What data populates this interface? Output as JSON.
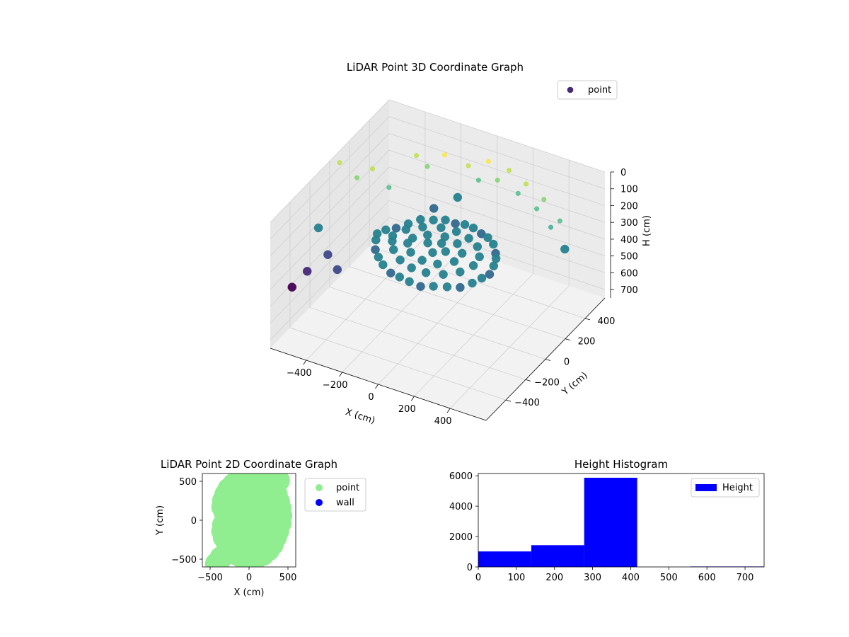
{
  "chart_data": [
    {
      "type": "scatter",
      "projection": "3d",
      "title": "LiDAR Point 3D Coordinate Graph",
      "xlabel": "X (cm)",
      "ylabel": "Y (cm)",
      "zlabel": "H (cm)",
      "xlim": [
        -600,
        600
      ],
      "ylim": [
        -600,
        600
      ],
      "zlim": [
        0,
        750
      ],
      "z_inverted": true,
      "xticks": [
        -400,
        -200,
        0,
        200,
        400
      ],
      "yticks": [
        -400,
        -200,
        0,
        200,
        400
      ],
      "zticks": [
        0,
        100,
        200,
        300,
        400,
        500,
        600,
        700
      ],
      "colormap": "viridis (by height)",
      "grid": true,
      "legend": {
        "entries": [
          "point"
        ],
        "placement": "top-right"
      },
      "series": [
        {
          "name": "point",
          "color": "#482878",
          "sample_points": [
            [
              -330,
              -10,
              330
            ],
            [
              -310,
              40,
              330
            ],
            [
              -280,
              90,
              340
            ],
            [
              -240,
              140,
              330
            ],
            [
              -200,
              190,
              320
            ],
            [
              -150,
              230,
              330
            ],
            [
              -100,
              260,
              330
            ],
            [
              -50,
              270,
              340
            ],
            [
              0,
              275,
              330
            ],
            [
              50,
              270,
              330
            ],
            [
              100,
              260,
              340
            ],
            [
              150,
              235,
              330
            ],
            [
              200,
              200,
              330
            ],
            [
              240,
              150,
              340
            ],
            [
              270,
              100,
              330
            ],
            [
              290,
              40,
              330
            ],
            [
              300,
              -20,
              340
            ],
            [
              290,
              -80,
              330
            ],
            [
              270,
              -140,
              330
            ],
            [
              230,
              -190,
              340
            ],
            [
              180,
              -230,
              330
            ],
            [
              120,
              -260,
              330
            ],
            [
              60,
              -280,
              340
            ],
            [
              0,
              -285,
              330
            ],
            [
              -60,
              -275,
              330
            ],
            [
              -120,
              -255,
              340
            ],
            [
              -180,
              -225,
              330
            ],
            [
              -230,
              -180,
              330
            ],
            [
              -280,
              -120,
              340
            ],
            [
              -310,
              -60,
              330
            ],
            [
              -250,
              0,
              320
            ],
            [
              -220,
              80,
              320
            ],
            [
              -160,
              140,
              320
            ],
            [
              -80,
              180,
              320
            ],
            [
              0,
              190,
              320
            ],
            [
              80,
              170,
              320
            ],
            [
              150,
              130,
              320
            ],
            [
              200,
              60,
              320
            ],
            [
              210,
              -20,
              320
            ],
            [
              180,
              -100,
              320
            ],
            [
              120,
              -160,
              320
            ],
            [
              40,
              -190,
              320
            ],
            [
              -40,
              -190,
              320
            ],
            [
              -120,
              -160,
              320
            ],
            [
              -190,
              -100,
              320
            ],
            [
              -230,
              -40,
              320
            ],
            [
              -150,
              20,
              310
            ],
            [
              -100,
              80,
              310
            ],
            [
              -20,
              110,
              310
            ],
            [
              60,
              90,
              310
            ],
            [
              120,
              30,
              310
            ],
            [
              120,
              -50,
              310
            ],
            [
              60,
              -110,
              310
            ],
            [
              -20,
              -120,
              310
            ],
            [
              -100,
              -90,
              310
            ],
            [
              -150,
              -30,
              310
            ],
            [
              -60,
              10,
              300
            ],
            [
              0,
              40,
              300
            ],
            [
              50,
              -10,
              300
            ],
            [
              0,
              -50,
              300
            ],
            [
              -230,
              380,
              380
            ],
            [
              -120,
              420,
              300
            ],
            [
              -20,
              450,
              180
            ],
            [
              80,
              460,
              150
            ],
            [
              200,
              450,
              180
            ],
            [
              320,
              420,
              210
            ],
            [
              420,
              380,
              260
            ],
            [
              520,
              340,
              330
            ],
            [
              -300,
              330,
              60
            ],
            [
              -250,
              350,
              120
            ],
            [
              -170,
              380,
              40
            ],
            [
              -60,
              420,
              90
            ],
            [
              40,
              440,
              40
            ],
            [
              150,
              450,
              60
            ],
            [
              250,
              440,
              100
            ],
            [
              360,
              420,
              140
            ],
            [
              460,
              400,
              220
            ],
            [
              -600,
              100,
              70
            ],
            [
              -520,
              130,
              150
            ],
            [
              -450,
              160,
              90
            ],
            [
              -380,
              200,
              200
            ],
            [
              -580,
              -150,
              300
            ],
            [
              -500,
              -200,
              400
            ],
            [
              -420,
              -250,
              430
            ],
            [
              -600,
              -380,
              520
            ],
            [
              -560,
              -300,
              460
            ]
          ]
        }
      ]
    },
    {
      "type": "scatter",
      "title": "LiDAR Point 2D Coordinate Graph",
      "xlabel": "X (cm)",
      "ylabel": "Y (cm)",
      "xlim": [
        -600,
        600
      ],
      "ylim": [
        -600,
        600
      ],
      "xticks": [
        -500,
        0,
        500
      ],
      "yticks": [
        -500,
        0,
        500
      ],
      "grid": false,
      "legend": {
        "entries": [
          "point",
          "wall"
        ],
        "placement": "outside-right"
      },
      "series": [
        {
          "name": "point",
          "color": "#90ee90",
          "sample_points": [
            [
              -100,
              540
            ],
            [
              -50,
              560
            ],
            [
              0,
              570
            ],
            [
              50,
              555
            ],
            [
              100,
              535
            ],
            [
              150,
              500
            ],
            [
              -150,
              500
            ],
            [
              -200,
              460
            ],
            [
              -260,
              400
            ],
            [
              -300,
              330
            ],
            [
              -330,
              250
            ],
            [
              -340,
              170
            ],
            [
              -310,
              100
            ],
            [
              -250,
              60
            ],
            [
              -290,
              10
            ],
            [
              -330,
              -60
            ],
            [
              -340,
              -140
            ],
            [
              -320,
              -220
            ],
            [
              -280,
              -300
            ],
            [
              -240,
              -370
            ],
            [
              -180,
              -430
            ],
            [
              -100,
              -470
            ],
            [
              0,
              -490
            ],
            [
              100,
              -480
            ],
            [
              180,
              -440
            ],
            [
              250,
              -380
            ],
            [
              300,
              -310
            ],
            [
              340,
              -220
            ],
            [
              370,
              -140
            ],
            [
              400,
              -40
            ],
            [
              410,
              60
            ],
            [
              400,
              150
            ],
            [
              380,
              240
            ],
            [
              350,
              330
            ],
            [
              300,
              400
            ],
            [
              250,
              460
            ],
            [
              200,
              500
            ],
            [
              320,
              510
            ],
            [
              380,
              510
            ],
            [
              -360,
              -480
            ],
            [
              -390,
              -540
            ],
            [
              -420,
              -560
            ],
            [
              0,
              0
            ],
            [
              -100,
              100
            ],
            [
              100,
              100
            ],
            [
              -100,
              -100
            ],
            [
              100,
              -100
            ],
            [
              0,
              300
            ],
            [
              0,
              -300
            ],
            [
              200,
              0
            ],
            [
              -200,
              0
            ],
            [
              -150,
              250
            ],
            [
              150,
              250
            ],
            [
              -150,
              -250
            ],
            [
              150,
              -250
            ],
            [
              250,
              200
            ],
            [
              -250,
              -150
            ],
            [
              250,
              -200
            ],
            [
              -50,
              400
            ],
            [
              50,
              -400
            ]
          ]
        },
        {
          "name": "wall",
          "color": "#0000ff",
          "sample_points": []
        }
      ]
    },
    {
      "type": "histogram",
      "title": "Height Histogram",
      "xlim": [
        0,
        750
      ],
      "ylim": [
        0,
        6150
      ],
      "xticks": [
        0,
        100,
        200,
        300,
        400,
        500,
        600,
        700
      ],
      "yticks": [
        0,
        2000,
        4000,
        6000
      ],
      "grid": false,
      "legend": {
        "entries": [
          "Height"
        ],
        "placement": "top-right"
      },
      "bins": [
        0,
        139,
        278,
        417,
        556,
        695,
        750
      ],
      "series": [
        {
          "name": "Height",
          "color": "#0000ff",
          "values": [
            1020,
            1430,
            5870,
            0,
            30,
            30
          ]
        }
      ]
    }
  ]
}
